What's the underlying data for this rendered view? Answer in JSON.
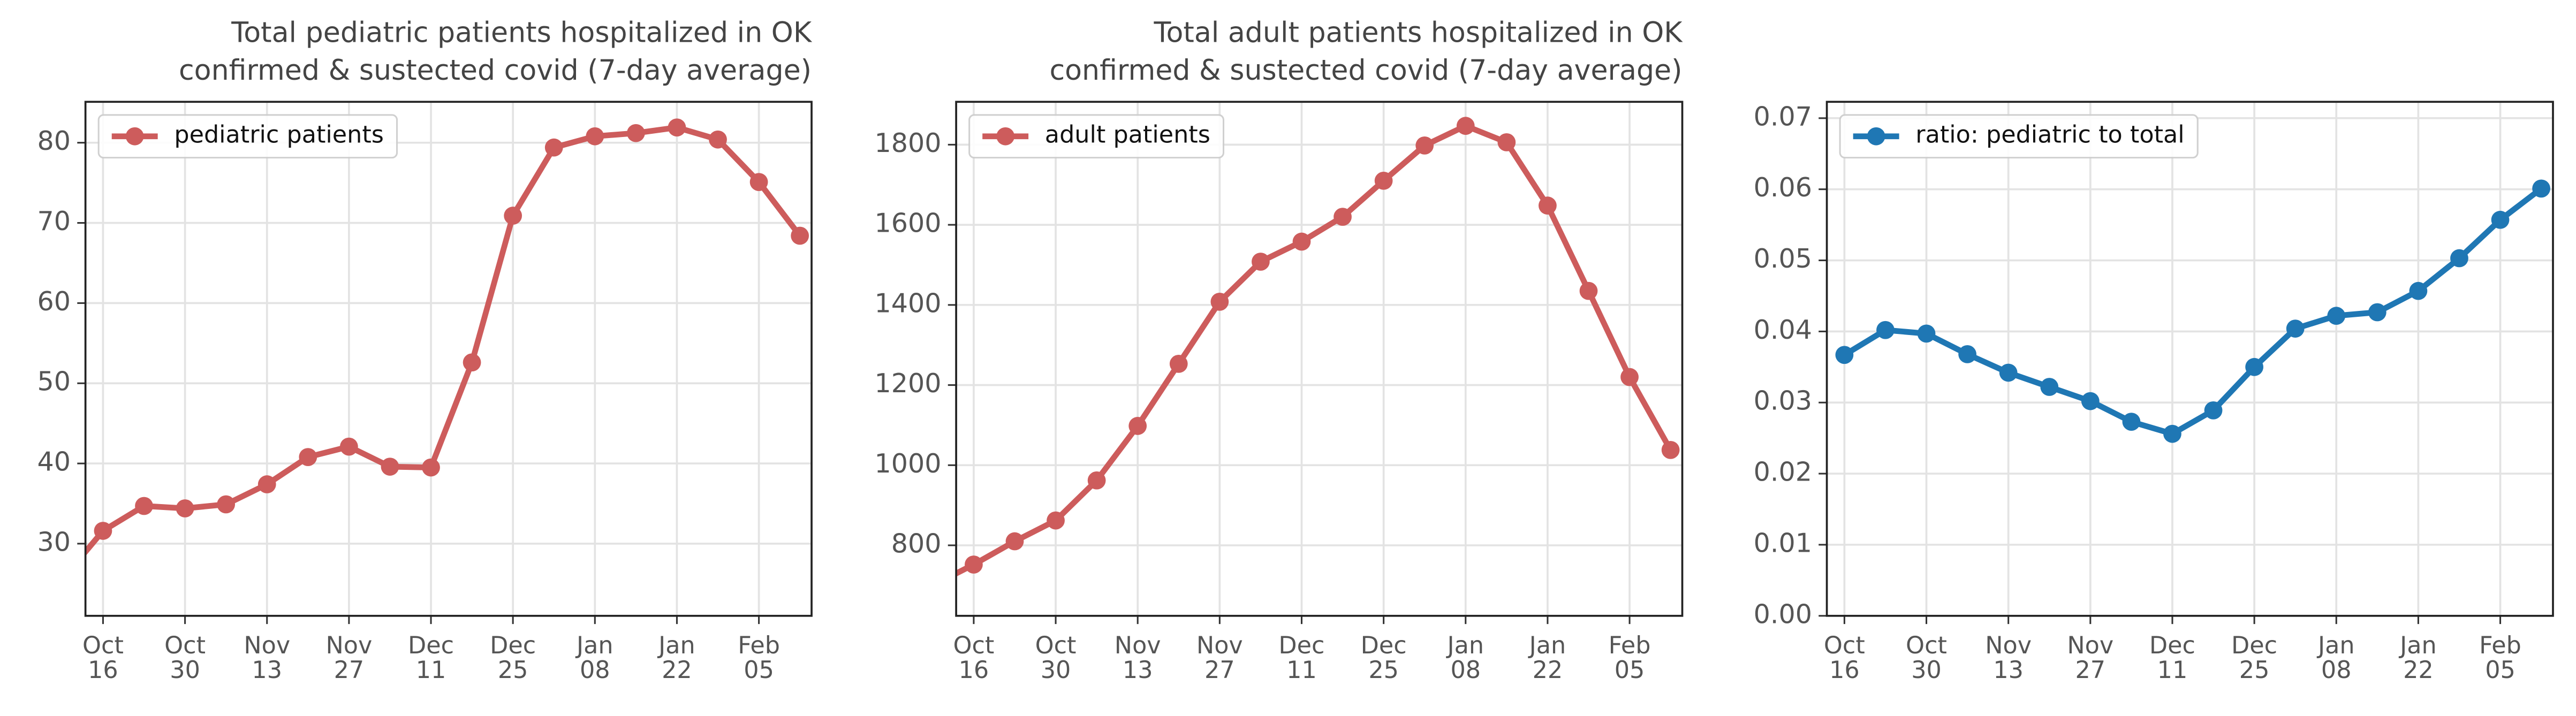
{
  "chart_data": [
    {
      "type": "line",
      "title": [
        "Total pediatric patients hospitalized in OK",
        "confirmed & sustected covid (7-day average)"
      ],
      "x": [
        "Oct 09",
        "Oct 16",
        "Oct 23",
        "Oct 30",
        "Nov 06",
        "Nov 13",
        "Nov 20",
        "Nov 27",
        "Dec 04",
        "Dec 11",
        "Dec 18",
        "Dec 25",
        "Jan 01",
        "Jan 08",
        "Jan 15",
        "Jan 22",
        "Jan 29",
        "Feb 05",
        "Feb 12"
      ],
      "series": [
        {
          "name": "pediatric patients",
          "color": "#cd5c5c",
          "values": [
            25.5,
            31.6,
            34.7,
            34.4,
            34.9,
            37.4,
            40.8,
            42.1,
            39.6,
            39.5,
            52.6,
            70.9,
            79.4,
            80.8,
            81.2,
            81.9,
            80.4,
            75.1,
            68.4
          ]
        }
      ],
      "xlim": [
        "Oct 13",
        "Feb 14"
      ],
      "xticks": [
        {
          "value": "Oct 16",
          "label": "Oct\n16"
        },
        {
          "value": "Oct 30",
          "label": "Oct\n30"
        },
        {
          "value": "Nov 13",
          "label": "Nov\n13"
        },
        {
          "value": "Nov 27",
          "label": "Nov\n27"
        },
        {
          "value": "Dec 11",
          "label": "Dec\n11"
        },
        {
          "value": "Dec 25",
          "label": "Dec\n25"
        },
        {
          "value": "Jan 08",
          "label": "Jan\n08"
        },
        {
          "value": "Jan 22",
          "label": "Jan\n22"
        },
        {
          "value": "Feb 05",
          "label": "Feb\n05"
        }
      ],
      "ylim": [
        21,
        85.1
      ],
      "yticks": [
        30,
        40,
        50,
        60,
        70,
        80
      ],
      "grid": true,
      "legend": "upper left"
    },
    {
      "type": "line",
      "title": [
        "Total adult patients hospitalized in OK",
        "confirmed & sustected covid (7-day average)"
      ],
      "x": [
        "Oct 09",
        "Oct 16",
        "Oct 23",
        "Oct 30",
        "Nov 06",
        "Nov 13",
        "Nov 20",
        "Nov 27",
        "Dec 04",
        "Dec 11",
        "Dec 18",
        "Dec 25",
        "Jan 01",
        "Jan 08",
        "Jan 15",
        "Jan 22",
        "Jan 29",
        "Feb 05",
        "Feb 12"
      ],
      "series": [
        {
          "name": "adult patients",
          "color": "#cd5c5c",
          "values": [
            700,
            752,
            810,
            862,
            962,
            1098,
            1253,
            1408,
            1508,
            1558,
            1620,
            1710,
            1798,
            1847,
            1806,
            1648,
            1435,
            1220,
            1038
          ]
        }
      ],
      "xlim": [
        "Oct 13",
        "Feb 14"
      ],
      "xticks": [
        {
          "value": "Oct 16",
          "label": "Oct\n16"
        },
        {
          "value": "Oct 30",
          "label": "Oct\n30"
        },
        {
          "value": "Nov 13",
          "label": "Nov\n13"
        },
        {
          "value": "Nov 27",
          "label": "Nov\n27"
        },
        {
          "value": "Dec 11",
          "label": "Dec\n11"
        },
        {
          "value": "Dec 25",
          "label": "Dec\n25"
        },
        {
          "value": "Jan 08",
          "label": "Jan\n08"
        },
        {
          "value": "Jan 22",
          "label": "Jan\n22"
        },
        {
          "value": "Feb 05",
          "label": "Feb\n05"
        }
      ],
      "ylim": [
        624,
        1907
      ],
      "yticks": [
        800,
        1000,
        1200,
        1400,
        1600,
        1800
      ],
      "grid": true,
      "legend": "upper left"
    },
    {
      "type": "line",
      "x": [
        "Oct 16",
        "Oct 23",
        "Oct 30",
        "Nov 06",
        "Nov 13",
        "Nov 20",
        "Nov 27",
        "Dec 04",
        "Dec 11",
        "Dec 18",
        "Dec 25",
        "Jan 01",
        "Jan 08",
        "Jan 15",
        "Jan 22",
        "Jan 29",
        "Feb 05",
        "Feb 12"
      ],
      "series": [
        {
          "name": "ratio: pediatric to total",
          "color": "#1f77b4",
          "values": [
            0.0367,
            0.0402,
            0.0397,
            0.0368,
            0.0342,
            0.0322,
            0.0302,
            0.0273,
            0.0256,
            0.0289,
            0.035,
            0.0404,
            0.0422,
            0.0427,
            0.0457,
            0.0503,
            0.0557,
            0.0601
          ]
        }
      ],
      "xlim": [
        "Oct 13",
        "Feb 14"
      ],
      "xticks": [
        {
          "value": "Oct 16",
          "label": "Oct\n16"
        },
        {
          "value": "Oct 30",
          "label": "Oct\n30"
        },
        {
          "value": "Nov 13",
          "label": "Nov\n13"
        },
        {
          "value": "Nov 27",
          "label": "Nov\n27"
        },
        {
          "value": "Dec 11",
          "label": "Dec\n11"
        },
        {
          "value": "Dec 25",
          "label": "Dec\n25"
        },
        {
          "value": "Jan 08",
          "label": "Jan\n08"
        },
        {
          "value": "Jan 22",
          "label": "Jan\n22"
        },
        {
          "value": "Feb 05",
          "label": "Feb\n05"
        }
      ],
      "ylim": [
        0,
        0.0723
      ],
      "yticks": [
        {
          "value": 0,
          "label": "0.00"
        },
        0.01,
        0.02,
        0.03,
        0.04,
        0.05,
        0.06,
        0.07
      ],
      "grid": true,
      "legend": "upper left"
    }
  ]
}
